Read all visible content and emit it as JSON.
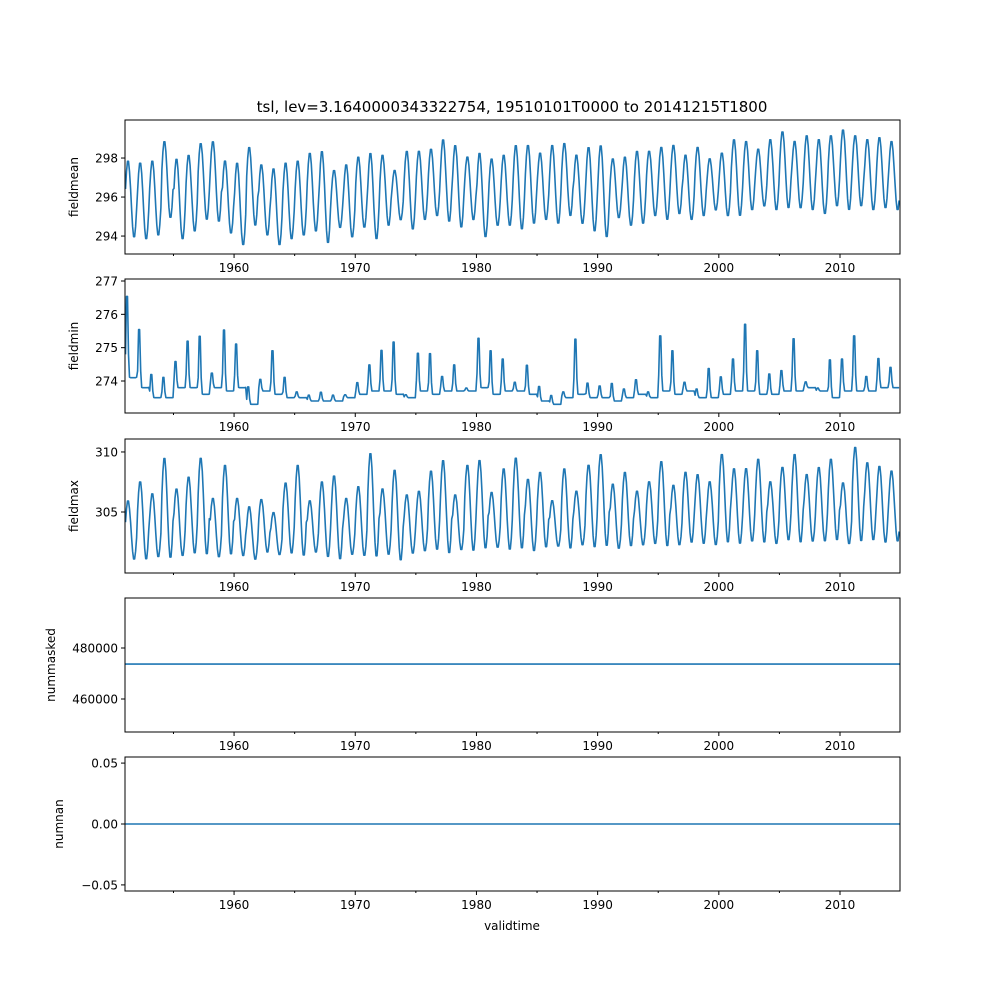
{
  "chart_data": {
    "type": "line",
    "title": "tsl, lev=3.1640000343322754, 19510101T0000 to 20141215T1800",
    "xlabel": "validtime",
    "xlim": [
      1951.0,
      2014.95
    ],
    "x_ticks": [
      1960,
      1970,
      1980,
      1990,
      2000,
      2010
    ],
    "x_tick_labels": [
      "1960",
      "1970",
      "1980",
      "1990",
      "2000",
      "2010"
    ],
    "x_minor_ticks": [
      1955,
      1965,
      1975,
      1985,
      1995,
      2005
    ],
    "years_start": 1951,
    "series_color": "#1f77b4",
    "panels": [
      {
        "ylabel": "fieldmean",
        "ylim": [
          293.08,
          299.95
        ],
        "y_ticks": [
          294,
          296,
          298
        ],
        "y_tick_labels": [
          "294",
          "296",
          "298"
        ],
        "annual_peak": [
          297.9,
          297.8,
          297.9,
          298.9,
          298.0,
          298.2,
          298.8,
          298.9,
          297.9,
          297.8,
          298.6,
          297.7,
          297.5,
          297.8,
          297.9,
          298.3,
          298.4,
          297.4,
          297.7,
          298.1,
          298.3,
          298.2,
          297.4,
          298.4,
          298.4,
          298.5,
          299.0,
          298.7,
          298.1,
          298.3,
          298.0,
          298.2,
          298.7,
          298.7,
          298.3,
          298.7,
          298.8,
          298.2,
          298.6,
          298.7,
          298.0,
          298.1,
          298.4,
          298.4,
          298.6,
          298.7,
          298.2,
          298.6,
          298.0,
          298.3,
          299.0,
          298.9,
          298.5,
          299.0,
          299.4,
          298.9,
          299.2,
          299.0,
          299.2,
          299.5,
          299.2,
          299.0,
          299.1,
          298.9
        ],
        "annual_trough": [
          293.9,
          293.8,
          294.0,
          294.9,
          293.8,
          294.2,
          294.8,
          294.7,
          294.1,
          293.5,
          294.5,
          294.0,
          293.5,
          293.8,
          294.0,
          294.2,
          293.6,
          294.4,
          293.9,
          294.4,
          293.8,
          294.5,
          294.8,
          294.3,
          294.8,
          295.0,
          294.7,
          294.4,
          294.8,
          293.9,
          294.5,
          294.5,
          294.3,
          294.6,
          294.8,
          294.6,
          295.0,
          294.6,
          294.2,
          293.9,
          294.9,
          294.5,
          294.6,
          295.0,
          294.8,
          295.1,
          294.8,
          295.0,
          295.3,
          295.0,
          295.0,
          295.3,
          295.5,
          295.3,
          295.4,
          295.4,
          295.3,
          295.1,
          295.5,
          295.3,
          295.5,
          295.3,
          295.4,
          295.3
        ]
      },
      {
        "ylabel": "fieldmin",
        "ylim": [
          273.04,
          277.06
        ],
        "y_ticks": [
          274,
          275,
          276,
          277
        ],
        "y_tick_labels": [
          "274",
          "275",
          "276",
          "277"
        ],
        "annual_peak": [
          276.9,
          275.8,
          274.3,
          274.2,
          274.7,
          275.4,
          275.6,
          274.3,
          275.8,
          275.3,
          273.9,
          274.1,
          275.1,
          274.2,
          273.7,
          273.6,
          273.7,
          273.6,
          273.6,
          274.0,
          274.6,
          275.1,
          275.4,
          273.6,
          275.0,
          275.0,
          274.2,
          274.6,
          273.8,
          275.5,
          275.1,
          274.8,
          274.0,
          274.6,
          273.9,
          273.6,
          273.7,
          275.5,
          274.0,
          273.9,
          274.0,
          273.8,
          274.1,
          273.7,
          275.6,
          275.1,
          274.0,
          273.8,
          274.5,
          274.2,
          274.8,
          276.0,
          275.1,
          274.3,
          274.4,
          275.5,
          274.0,
          273.8,
          274.8,
          274.8,
          275.6,
          274.2,
          274.8,
          274.5
        ],
        "annual_trough": [
          274.1,
          273.8,
          273.5,
          273.5,
          273.8,
          273.8,
          273.6,
          273.8,
          273.7,
          273.8,
          273.3,
          273.7,
          273.6,
          273.5,
          273.5,
          273.4,
          273.4,
          273.4,
          273.5,
          273.6,
          273.7,
          273.7,
          273.6,
          273.5,
          273.7,
          273.6,
          273.7,
          273.7,
          273.7,
          273.8,
          273.6,
          273.7,
          273.7,
          273.6,
          273.4,
          273.3,
          273.5,
          273.6,
          273.5,
          273.5,
          273.4,
          273.5,
          273.6,
          273.5,
          273.7,
          273.6,
          273.7,
          273.5,
          273.5,
          273.6,
          273.7,
          273.7,
          273.6,
          273.6,
          273.7,
          273.7,
          273.8,
          273.7,
          273.5,
          273.7,
          273.7,
          273.7,
          273.8,
          273.8
        ]
      },
      {
        "ylabel": "fieldmax",
        "ylim": [
          299.92,
          311.08
        ],
        "y_ticks": [
          305,
          310
        ],
        "y_tick_labels": [
          "305",
          "310"
        ],
        "annual_peak": [
          306.0,
          307.6,
          306.6,
          309.6,
          307.0,
          308.0,
          309.6,
          306.2,
          309.0,
          306.2,
          305.5,
          306.1,
          305.0,
          307.5,
          309.0,
          306.0,
          307.6,
          308.1,
          306.2,
          307.2,
          310.0,
          307.0,
          308.6,
          306.5,
          306.8,
          308.5,
          309.4,
          306.5,
          309.0,
          309.4,
          306.7,
          308.7,
          309.6,
          307.8,
          308.4,
          306.0,
          308.7,
          306.8,
          309.0,
          309.9,
          307.4,
          308.4,
          306.8,
          307.6,
          309.3,
          307.3,
          308.4,
          308.2,
          307.6,
          309.9,
          308.7,
          308.7,
          309.5,
          307.6,
          308.8,
          309.9,
          308.2,
          308.8,
          309.5,
          307.5,
          310.5,
          309.2,
          308.9,
          308.5
        ],
        "annual_trough": [
          301.0,
          301.0,
          301.2,
          301.1,
          301.3,
          301.5,
          301.4,
          301.2,
          301.4,
          301.3,
          301.0,
          301.6,
          301.4,
          301.5,
          301.3,
          301.6,
          301.2,
          301.0,
          301.4,
          301.3,
          301.2,
          301.4,
          300.9,
          301.5,
          301.7,
          301.8,
          301.5,
          301.8,
          301.7,
          301.9,
          302.0,
          301.8,
          301.9,
          301.7,
          302.0,
          302.1,
          301.9,
          302.2,
          302.0,
          302.1,
          301.9,
          302.1,
          302.2,
          302.3,
          302.1,
          302.2,
          302.4,
          302.3,
          302.2,
          302.4,
          302.3,
          302.5,
          302.4,
          302.3,
          302.6,
          302.4,
          302.5,
          302.5,
          302.6,
          302.3,
          302.5,
          302.6,
          302.4,
          302.5
        ]
      },
      {
        "ylabel": "nummasked",
        "ylim": [
          447060,
          499600
        ],
        "y_ticks": [
          460000,
          480000
        ],
        "y_tick_labels": [
          "460000",
          "480000"
        ],
        "constant": 473700
      },
      {
        "ylabel": "numnan",
        "ylim": [
          -0.055,
          0.055
        ],
        "y_ticks": [
          -0.05,
          0.0,
          0.05
        ],
        "y_tick_labels": [
          "−0.05",
          "0.00",
          "0.05"
        ],
        "constant": 0
      }
    ]
  }
}
